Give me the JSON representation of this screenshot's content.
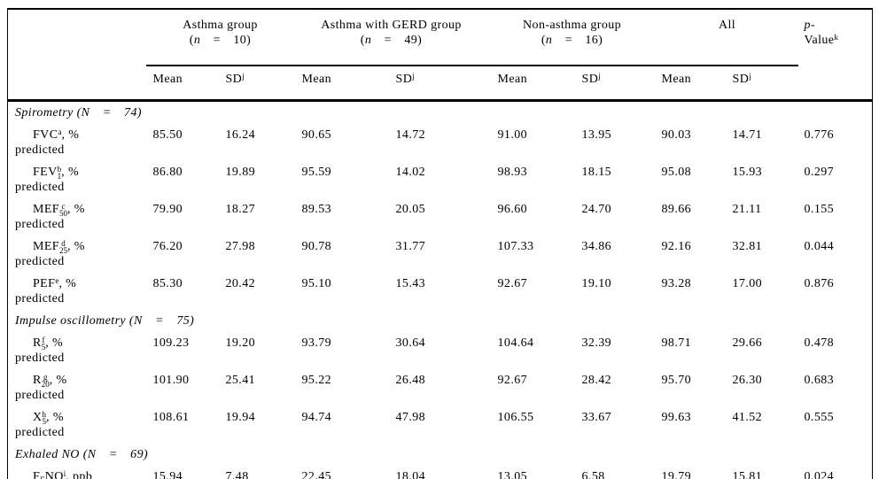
{
  "table": {
    "groups": [
      {
        "name": "Asthma group",
        "n_pre": "(",
        "n_var": "n",
        "n_post": " = 10)"
      },
      {
        "name": "Asthma with GERD group",
        "n_pre": "(",
        "n_var": "n",
        "n_post": " = 49)"
      },
      {
        "name": "Non-asthma group",
        "n_pre": "(",
        "n_var": "n",
        "n_post": " = 16)"
      },
      {
        "name": "All",
        "n_pre": "",
        "n_var": "",
        "n_post": ""
      }
    ],
    "p_header": {
      "p": "p",
      "dash": "-",
      "value": "Value",
      "sup": "k"
    },
    "subheader": {
      "mean": "Mean",
      "sd": "SD",
      "sd_sup": "j"
    },
    "rows": [
      {
        "type": "section",
        "text": "Spirometry (N = 74)"
      },
      {
        "type": "data",
        "label": {
          "parts": [
            {
              "text": "FVC"
            },
            {
              "sup": "a"
            },
            {
              "text": ", %"
            }
          ],
          "wrap": "predicted"
        },
        "values": [
          "85.50",
          "16.24",
          "90.65",
          "14.72",
          "91.00",
          "13.95",
          "90.03",
          "14.71",
          "0.776"
        ]
      },
      {
        "type": "data",
        "label": {
          "parts": [
            {
              "text": "FEV"
            },
            {
              "sub": "1",
              "sup": "b"
            },
            {
              "text": ", %"
            }
          ],
          "wrap": "predicted"
        },
        "values": [
          "86.80",
          "19.89",
          "95.59",
          "14.02",
          "98.93",
          "18.15",
          "95.08",
          "15.93",
          "0.297"
        ]
      },
      {
        "type": "data",
        "label": {
          "parts": [
            {
              "text": "MEF"
            },
            {
              "sub": "50",
              "sup": "c"
            },
            {
              "text": ", %"
            }
          ],
          "wrap": "predicted"
        },
        "values": [
          "79.90",
          "18.27",
          "89.53",
          "20.05",
          "96.60",
          "24.70",
          "89.66",
          "21.11",
          "0.155"
        ]
      },
      {
        "type": "data",
        "label": {
          "parts": [
            {
              "text": "MEF"
            },
            {
              "sub": "25",
              "sup": "d"
            },
            {
              "text": ", %"
            }
          ],
          "wrap": "predicted"
        },
        "values": [
          "76.20",
          "27.98",
          "90.78",
          "31.77",
          "107.33",
          "34.86",
          "92.16",
          "32.81",
          "0.044"
        ]
      },
      {
        "type": "data",
        "label": {
          "parts": [
            {
              "text": "PEF"
            },
            {
              "sup": "e"
            },
            {
              "text": ", %"
            }
          ],
          "wrap": "predicted"
        },
        "values": [
          "85.30",
          "20.42",
          "95.10",
          "15.43",
          "92.67",
          "19.10",
          "93.28",
          "17.00",
          "0.876"
        ]
      },
      {
        "type": "section",
        "text": "Impulse oscillometry (N = 75)"
      },
      {
        "type": "data",
        "label": {
          "parts": [
            {
              "text": "R"
            },
            {
              "sub": "5",
              "sup": "f"
            },
            {
              "text": ", %"
            }
          ],
          "wrap": "predicted"
        },
        "values": [
          "109.23",
          "19.20",
          "93.79",
          "30.64",
          "104.64",
          "32.39",
          "98.71",
          "29.66",
          "0.478"
        ]
      },
      {
        "type": "data",
        "label": {
          "parts": [
            {
              "text": "R"
            },
            {
              "sub": "20",
              "sup": "g"
            },
            {
              "text": ", %"
            }
          ],
          "wrap": "predicted"
        },
        "values": [
          "101.90",
          "25.41",
          "95.22",
          "26.48",
          "92.67",
          "28.42",
          "95.70",
          "26.30",
          "0.683"
        ]
      },
      {
        "type": "data",
        "label": {
          "parts": [
            {
              "text": "X"
            },
            {
              "sub": "5",
              "sup": "h"
            },
            {
              "text": ", %"
            }
          ],
          "wrap": "predicted"
        },
        "values": [
          "108.61",
          "19.94",
          "94.74",
          "47.98",
          "106.55",
          "33.67",
          "99.63",
          "41.52",
          "0.555"
        ]
      },
      {
        "type": "section",
        "text": "Exhaled NO (N = 69)"
      },
      {
        "type": "data",
        "label": {
          "parts": [
            {
              "text": "F"
            },
            {
              "sub": "E"
            },
            {
              "text": "NO"
            },
            {
              "sup": "i"
            },
            {
              "text": ", ppb"
            }
          ],
          "wrap": ""
        },
        "values": [
          "15.94",
          "7.48",
          "22.45",
          "18.04",
          "13.05",
          "6.58",
          "19.79",
          "15.81",
          "0.024"
        ]
      }
    ]
  }
}
